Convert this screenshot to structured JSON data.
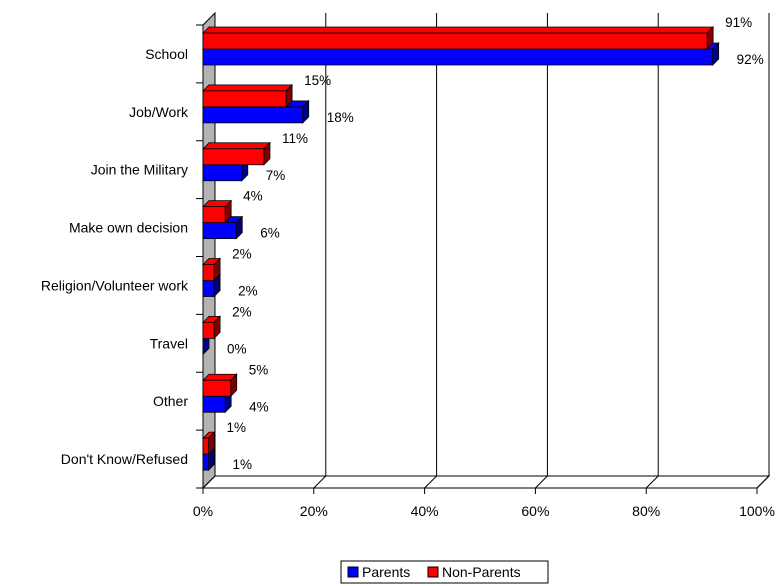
{
  "chart_data": {
    "type": "bar",
    "orientation": "horizontal",
    "three_d": true,
    "categories": [
      "School",
      "Job/Work",
      "Join the Military",
      "Make own decision",
      "Religion/Volunteer work",
      "Travel",
      "Other",
      "Don't Know/Refused"
    ],
    "series": [
      {
        "name": "Non-Parents",
        "color": "#ff0000",
        "values": [
          91,
          15,
          11,
          4,
          2,
          2,
          5,
          1
        ],
        "labels": [
          "91%",
          "15%",
          "11%",
          "4%",
          "2%",
          "2%",
          "5%",
          "1%"
        ]
      },
      {
        "name": "Parents",
        "color": "#0000ff",
        "values": [
          92,
          18,
          7,
          6,
          2,
          0,
          4,
          1
        ],
        "labels": [
          "92%",
          "18%",
          "7%",
          "6%",
          "2%",
          "0%",
          "4%",
          "1%"
        ]
      }
    ],
    "xlim": [
      0,
      100
    ],
    "x_ticks": [
      "0%",
      "20%",
      "40%",
      "60%",
      "80%",
      "100%"
    ],
    "grid": true,
    "legend_position": "bottom",
    "legend": [
      "Parents",
      "Non-Parents"
    ]
  }
}
